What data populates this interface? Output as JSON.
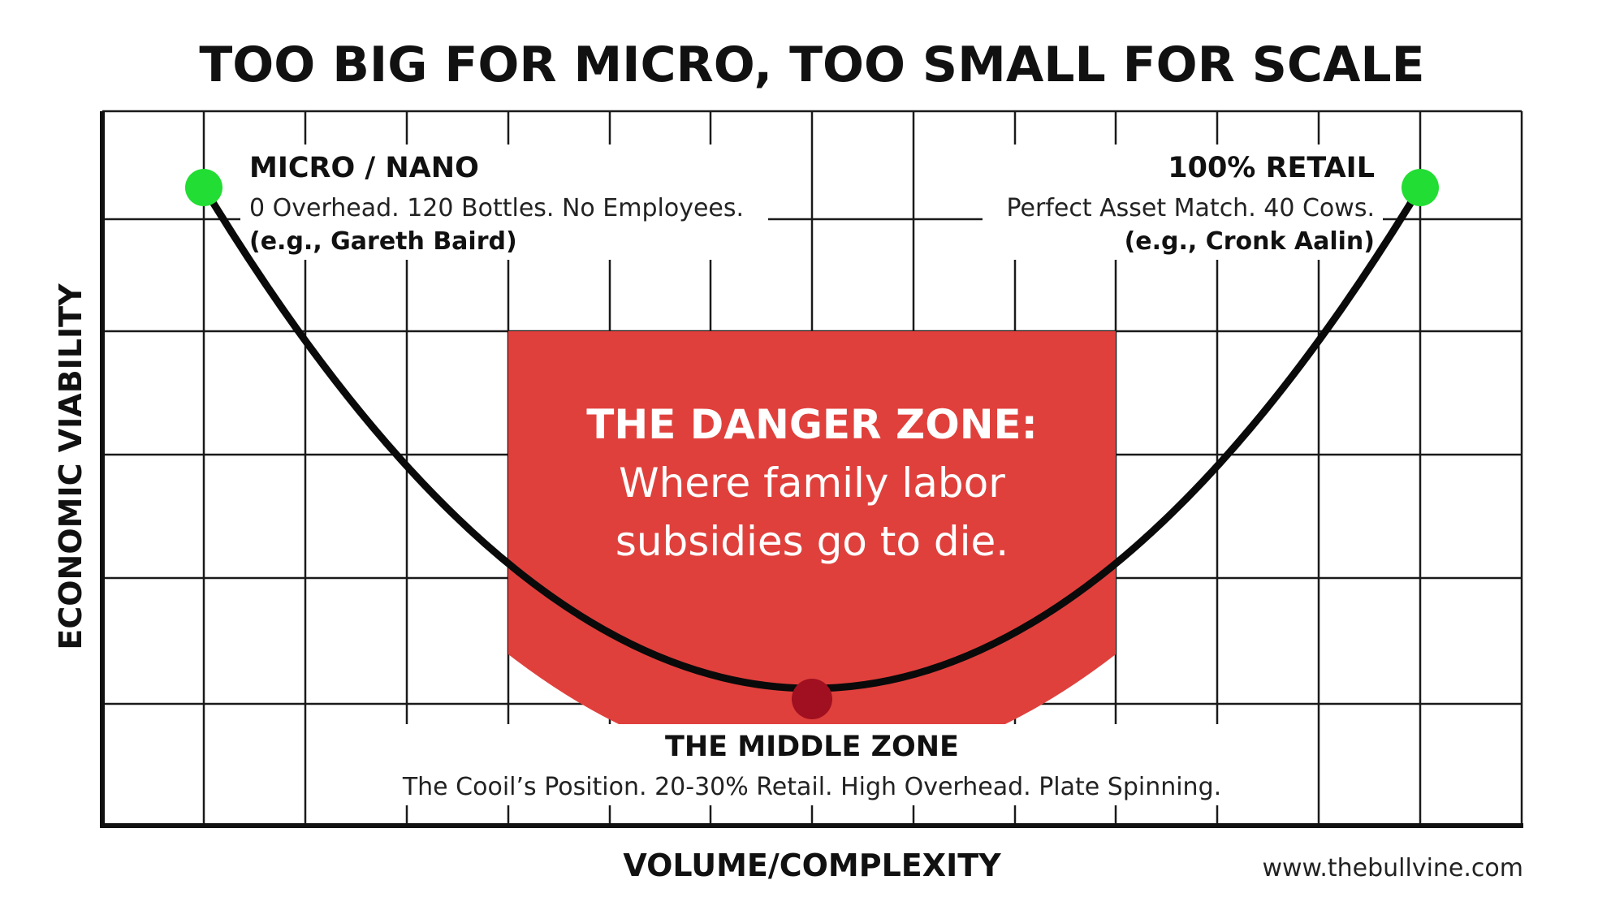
{
  "title": "TOO BIG FOR MICRO, TOO SMALL FOR SCALE",
  "axes": {
    "y_label": "ECONOMIC VIABILITY",
    "x_label": "VOLUME/COMPLEXITY"
  },
  "left_point": {
    "heading": "MICRO / NANO",
    "line1": "0 Overhead. 120 Bottles. No Employees.",
    "line2": "(e.g., Gareth Baird)"
  },
  "right_point": {
    "heading": "100% RETAIL",
    "line1": "Perfect Asset Match. 40 Cows.",
    "line2": "(e.g., Cronk Aalin)"
  },
  "danger_zone": {
    "line1": "THE DANGER ZONE:",
    "line2": "Where family labor",
    "line3": "subsidies go to die."
  },
  "middle_zone": {
    "heading": "THE MIDDLE ZONE",
    "description": "The Cooil’s Position. 20-30% Retail. High Overhead. Plate Spinning."
  },
  "source": "www.thebullvine.com",
  "colors": {
    "danger_fill": "#e0403c",
    "endpoint_green": "#22dd33",
    "midpoint_red": "#a01020",
    "curve": "#0a0a0a",
    "grid": "#1a1a1a"
  }
}
